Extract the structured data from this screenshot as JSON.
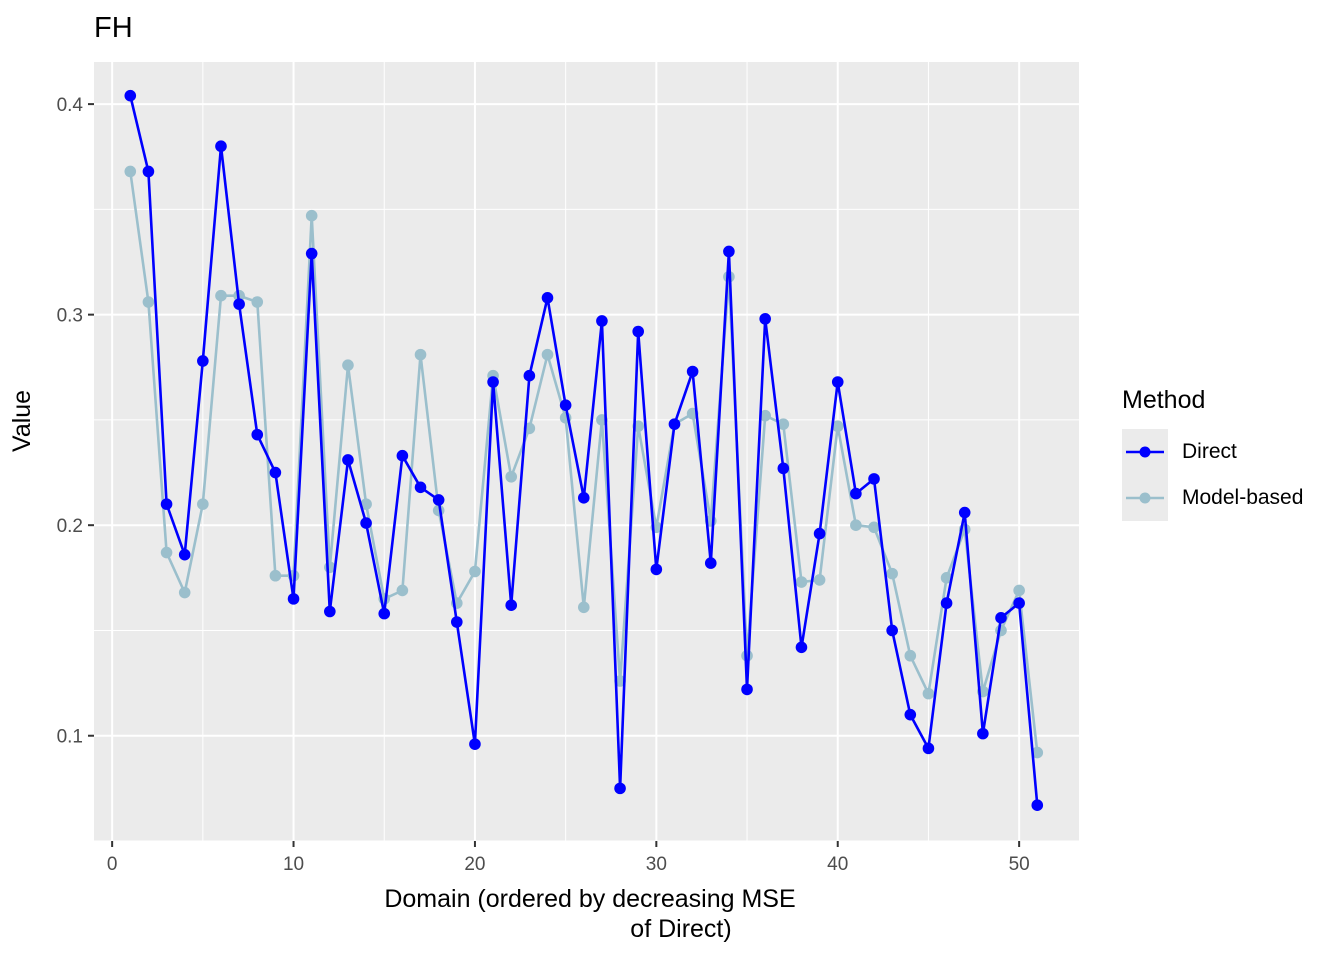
{
  "chart_data": {
    "type": "line",
    "title": "FH",
    "xlabel": "Domain (ordered by decreasing MSE\n                    of Direct)",
    "ylabel": "Value",
    "xlim": [
      -1,
      53.3
    ],
    "ylim": [
      0.05,
      0.42
    ],
    "x_ticks": [
      0,
      10,
      20,
      30,
      40,
      50
    ],
    "y_ticks": [
      0.1,
      0.2,
      0.3,
      0.4
    ],
    "legend_title": "Method",
    "legend_position": "right",
    "grid": true,
    "x": [
      1,
      2,
      3,
      4,
      5,
      6,
      7,
      8,
      9,
      10,
      11,
      12,
      13,
      14,
      15,
      16,
      17,
      18,
      19,
      20,
      21,
      22,
      23,
      24,
      25,
      26,
      27,
      28,
      29,
      30,
      31,
      32,
      33,
      34,
      35,
      36,
      37,
      38,
      39,
      40,
      41,
      42,
      43,
      44,
      45,
      46,
      47,
      48,
      49,
      50,
      51
    ],
    "series": [
      {
        "name": "Direct",
        "color": "#0000ff",
        "values": [
          0.404,
          0.368,
          0.21,
          0.186,
          0.278,
          0.38,
          0.305,
          0.243,
          0.225,
          0.165,
          0.329,
          0.159,
          0.231,
          0.201,
          0.158,
          0.233,
          0.218,
          0.212,
          0.154,
          0.096,
          0.268,
          0.162,
          0.271,
          0.308,
          0.257,
          0.213,
          0.297,
          0.075,
          0.292,
          0.179,
          0.248,
          0.273,
          0.182,
          0.33,
          0.122,
          0.298,
          0.227,
          0.142,
          0.196,
          0.268,
          0.215,
          0.222,
          0.15,
          0.11,
          0.094,
          0.163,
          0.206,
          0.101,
          0.156,
          0.163,
          0.067
        ]
      },
      {
        "name": "Model-based",
        "color": "#9bbfcc",
        "values": [
          0.368,
          0.306,
          0.187,
          0.168,
          0.21,
          0.309,
          0.309,
          0.306,
          0.176,
          0.176,
          0.347,
          0.18,
          0.276,
          0.21,
          0.165,
          0.169,
          0.281,
          0.207,
          0.163,
          0.178,
          0.271,
          0.223,
          0.246,
          0.281,
          0.251,
          0.161,
          0.25,
          0.126,
          0.247,
          0.199,
          0.248,
          0.253,
          0.202,
          0.318,
          0.138,
          0.252,
          0.248,
          0.173,
          0.174,
          0.247,
          0.2,
          0.199,
          0.177,
          0.138,
          0.12,
          0.175,
          0.198,
          0.121,
          0.15,
          0.169,
          0.092
        ]
      }
    ]
  }
}
